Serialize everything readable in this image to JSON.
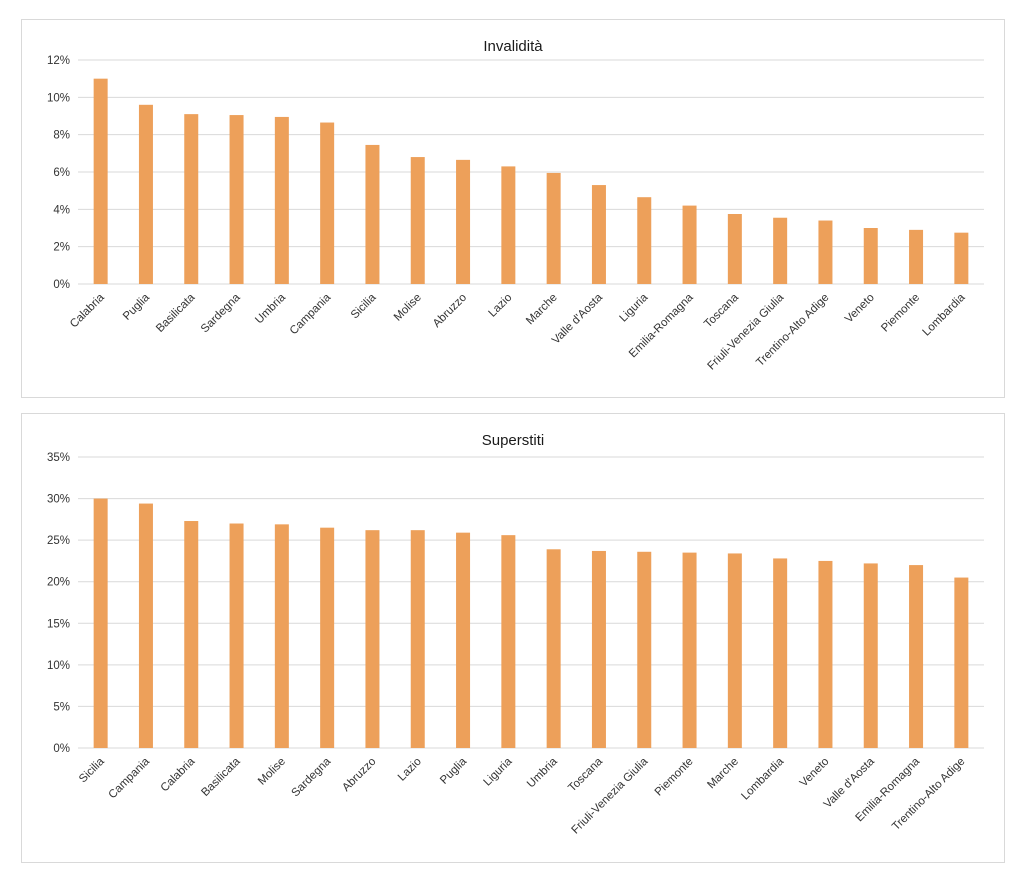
{
  "chart_data": [
    {
      "type": "bar",
      "title": "Invalidità",
      "color": "#EDA05A",
      "ylim": [
        0,
        12
      ],
      "yticks": [
        "0%",
        "2%",
        "4%",
        "6%",
        "8%",
        "10%",
        "12%"
      ],
      "grid": true,
      "categories": [
        "Calabria",
        "Puglia",
        "Basilicata",
        "Sardegna",
        "Umbria",
        "Campania",
        "Sicilia",
        "Molise",
        "Abruzzo",
        "Lazio",
        "Marche",
        "Valle d'Aosta",
        "Liguria",
        "Emilia-Romagna",
        "Toscana",
        "Friuli-Venezia Giulia",
        "Trentino-Alto Adige",
        "Veneto",
        "Piemonte",
        "Lombardia"
      ],
      "values": [
        11.0,
        9.6,
        9.1,
        9.05,
        8.95,
        8.65,
        7.45,
        6.8,
        6.65,
        6.3,
        5.95,
        5.3,
        4.65,
        4.2,
        3.75,
        3.55,
        3.4,
        3.0,
        2.9,
        2.75
      ]
    },
    {
      "type": "bar",
      "title": "Superstiti",
      "color": "#EDA05A",
      "ylim": [
        0,
        35
      ],
      "yticks": [
        "0%",
        "5%",
        "10%",
        "15%",
        "20%",
        "25%",
        "30%",
        "35%"
      ],
      "grid": true,
      "categories": [
        "Sicilia",
        "Campania",
        "Calabria",
        "Basilicata",
        "Molise",
        "Sardegna",
        "Abruzzo",
        "Lazio",
        "Puglia",
        "Liguria",
        "Umbria",
        "Toscana",
        "Friuli-Venezia Giulia",
        "Piemonte",
        "Marche",
        "Lombardia",
        "Veneto",
        "Valle d'Aosta",
        "Emilia-Romagna",
        "Trentino-Alto Adige"
      ],
      "values": [
        30.0,
        29.4,
        27.3,
        27.0,
        26.9,
        26.5,
        26.2,
        26.2,
        25.9,
        25.6,
        23.9,
        23.7,
        23.6,
        23.5,
        23.4,
        22.8,
        22.5,
        22.2,
        22.0,
        20.5
      ]
    }
  ]
}
